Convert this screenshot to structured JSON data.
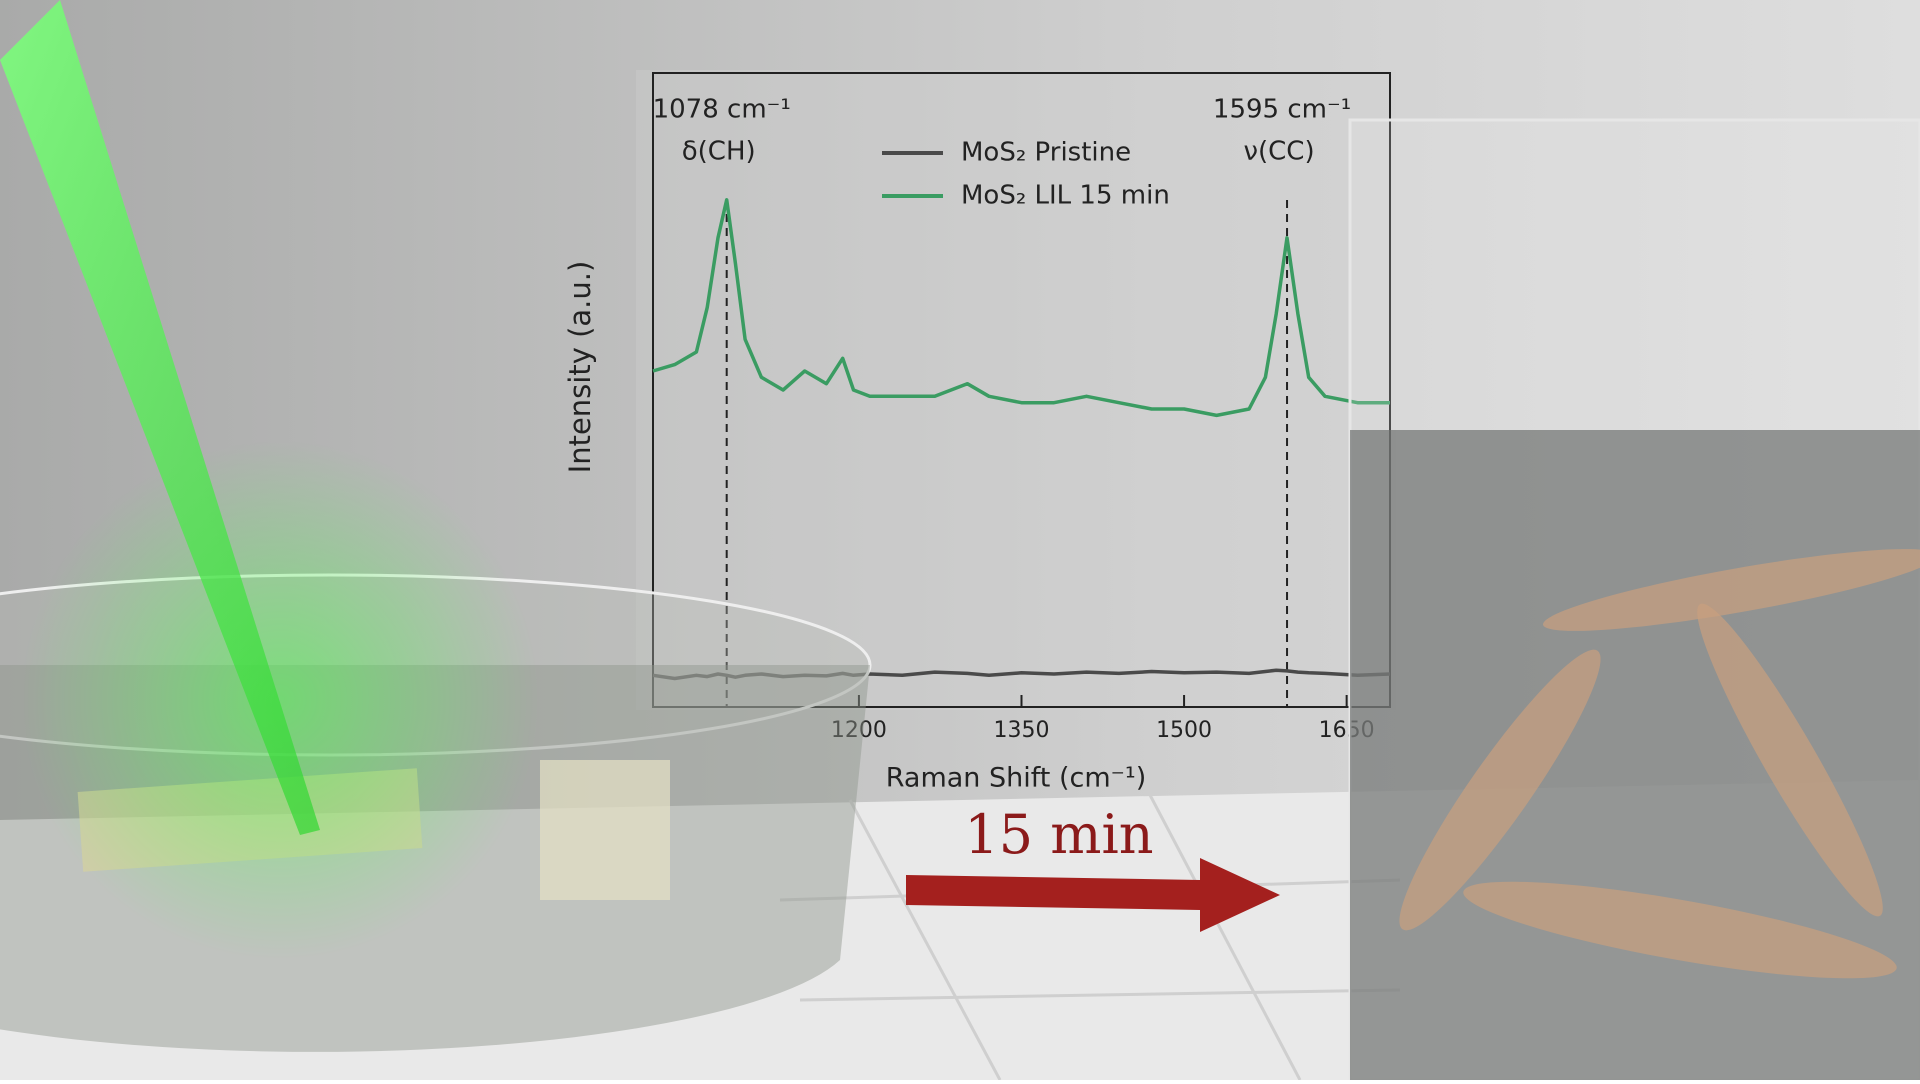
{
  "chart_data": {
    "type": "line",
    "ylabel": "Intensity (a.u.)",
    "xlabel": "Raman Shift (cm⁻¹)",
    "x": [
      1010,
      1030,
      1050,
      1060,
      1070,
      1078,
      1086,
      1095,
      1110,
      1130,
      1150,
      1170,
      1185,
      1195,
      1210,
      1240,
      1270,
      1300,
      1320,
      1350,
      1380,
      1410,
      1440,
      1470,
      1500,
      1530,
      1560,
      1575,
      1585,
      1595,
      1605,
      1615,
      1630,
      1660,
      1690
    ],
    "series": [
      {
        "name": "MoS₂ Pristine",
        "color": "#4a4a4a",
        "values": [
          0.05,
          0.045,
          0.05,
          0.048,
          0.052,
          0.05,
          0.047,
          0.05,
          0.052,
          0.048,
          0.05,
          0.049,
          0.053,
          0.05,
          0.052,
          0.05,
          0.055,
          0.053,
          0.05,
          0.054,
          0.052,
          0.055,
          0.053,
          0.056,
          0.054,
          0.055,
          0.053,
          0.056,
          0.058,
          0.057,
          0.055,
          0.054,
          0.053,
          0.05,
          0.052
        ]
      },
      {
        "name": "MoS₂ LIL 15 min",
        "color": "#3a9c62",
        "values": [
          0.53,
          0.54,
          0.56,
          0.63,
          0.74,
          0.8,
          0.7,
          0.58,
          0.52,
          0.5,
          0.53,
          0.51,
          0.55,
          0.5,
          0.49,
          0.49,
          0.49,
          0.51,
          0.49,
          0.48,
          0.48,
          0.49,
          0.48,
          0.47,
          0.47,
          0.46,
          0.47,
          0.52,
          0.62,
          0.74,
          0.62,
          0.52,
          0.49,
          0.48,
          0.48
        ]
      }
    ],
    "xlim": [
      1010,
      1690
    ],
    "ylim": [
      0,
      1
    ],
    "xticks": [
      1200,
      1350,
      1500,
      1650
    ],
    "annotations": [
      {
        "x": 1078,
        "text": "1078 cm⁻¹",
        "label": "δ(CH)"
      },
      {
        "x": 1595,
        "text": "1595 cm⁻¹",
        "label": "ν(CC)"
      }
    ]
  },
  "scene": {
    "arrow_label": "15 min"
  }
}
